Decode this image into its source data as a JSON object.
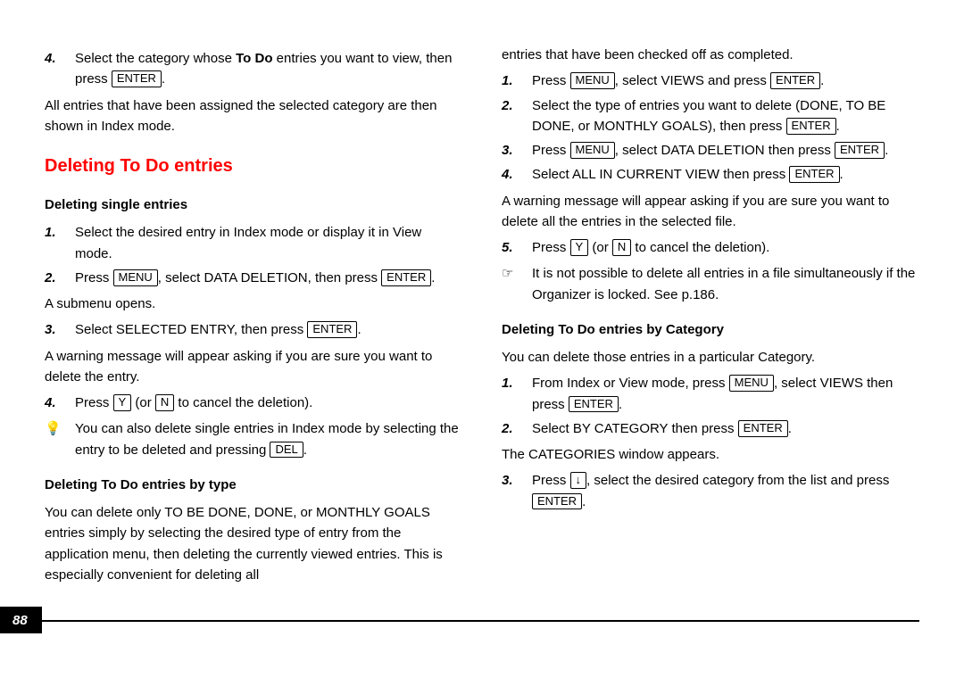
{
  "pageNumber": "88",
  "left": {
    "step4a": "4.",
    "step4a_pre": "Select the category whose ",
    "step4a_bold": "To Do",
    "step4a_post": " entries you want to view, then press ",
    "enter": "ENTER",
    "afterStep4": "All entries that have been assigned the selected category are then shown in Index mode.",
    "sectionTitle": "Deleting To Do entries",
    "sub1": "Deleting single entries",
    "s1_1n": "1.",
    "s1_1": "Select the desired entry in Index mode or display it in View mode.",
    "s1_2n": "2.",
    "s1_2_pre": "Press ",
    "menu": "MENU",
    "s1_2_mid": ", select DATA DELETION, then press ",
    "subopens": "A submenu opens.",
    "s1_3n": "3.",
    "s1_3_pre": "Select SELECTED ENTRY, then press ",
    "warn1": "A warning message will appear asking if you are sure you want to delete the entry.",
    "s1_4n": "4.",
    "s1_4_pre": "Press ",
    "y": "Y",
    "s1_4_mid": " (or ",
    "n": "N",
    "s1_4_post": " to cancel the deletion).",
    "bulbIcon": "💡",
    "bulb_pre": "You can also delete single entries in Index mode by selecting the entry to be deleted and pressing ",
    "del": "DEL",
    "sub2": "Deleting To Do entries by type",
    "typePara": "You can delete only TO BE DONE, DONE, or MONTHLY GOALS entries simply by selecting the desired type of entry from the application menu, then deleting the currently viewed entries. This is especially convenient for deleting all"
  },
  "right": {
    "cont": "entries that have been checked off as completed.",
    "r1n": "1.",
    "r1_pre": "Press ",
    "r1_mid": ", select VIEWS and press ",
    "r2n": "2.",
    "r2_pre": "Select the type of entries you want to delete (DONE, TO BE DONE, or MONTHLY GOALS), then press ",
    "r3n": "3.",
    "r3_pre": "Press ",
    "r3_mid": ", select DATA DELETION then press ",
    "r4n": "4.",
    "r4_pre": "Select ALL IN CURRENT VIEW then press ",
    "warn2": "A warning message will appear asking if you are sure you want to delete all the entries in the selected file.",
    "r5n": "5.",
    "r5_pre": "Press ",
    "r5_mid": " (or ",
    "r5_post": " to cancel the deletion).",
    "handIcon": "☞",
    "handText": "It is not possible to delete all entries in a file simultaneously if the Organizer is locked. See p.186.",
    "sub3": "Deleting To Do entries by Category",
    "catPara": "You can delete those entries in a particular Category.",
    "c1n": "1.",
    "c1_pre": "From Index or View mode, press ",
    "c1_mid": ", select VIEWS then press ",
    "c2n": "2.",
    "c2_pre": "Select BY CATEGORY then press ",
    "catwin": "The CATEGORIES window appears.",
    "c3n": "3.",
    "c3_pre": "Press ",
    "down": "↓",
    "c3_mid": ", select the desired category from the list and press "
  }
}
